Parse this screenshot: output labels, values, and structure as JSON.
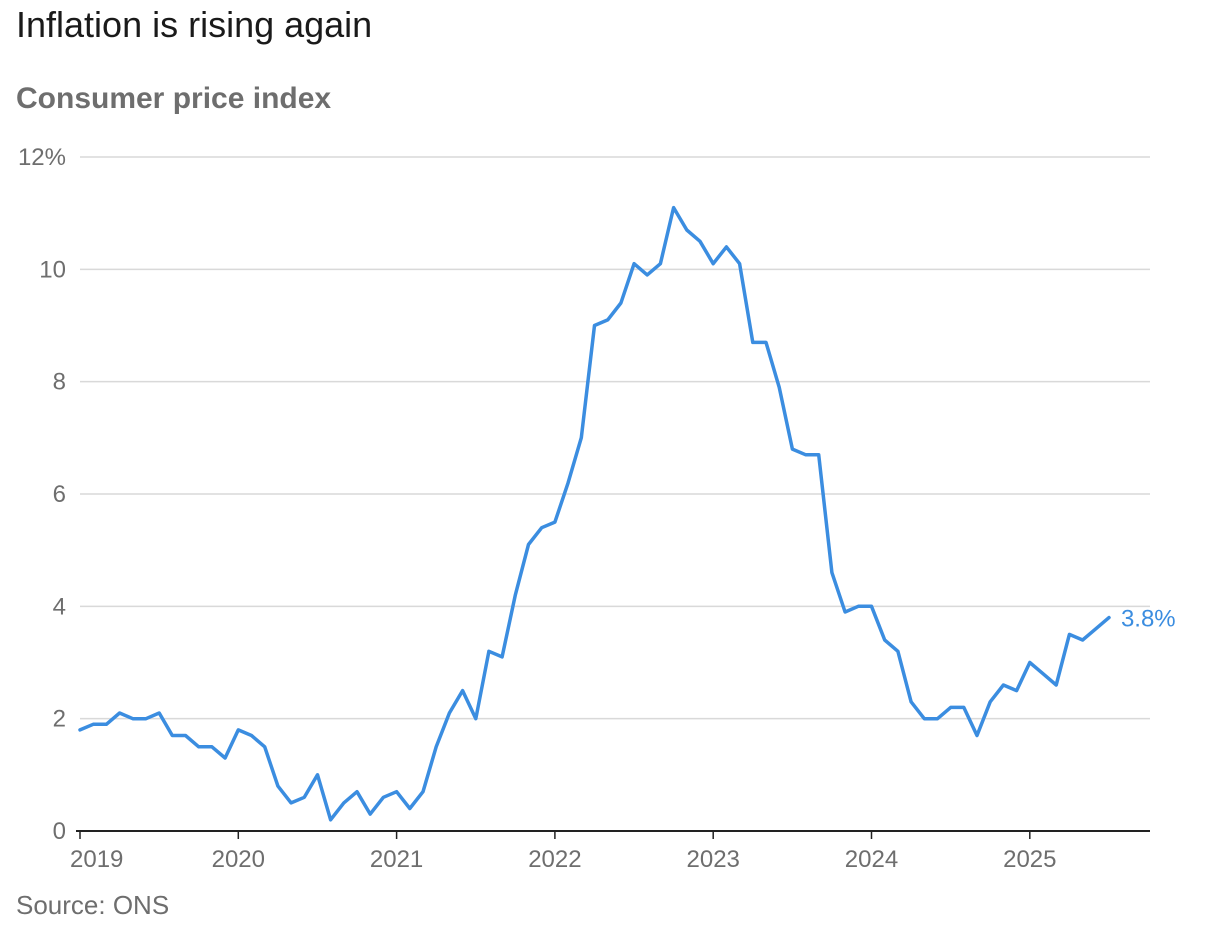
{
  "title": "Inflation is rising again",
  "subtitle": "Consumer price index",
  "source": "Source: ONS",
  "colors": {
    "line": "#3b8de0",
    "grid": "#d9d9d9",
    "axis": "#222222",
    "text": "#6e6e6e"
  },
  "chart_data": {
    "type": "line",
    "title": "Inflation is rising again",
    "subtitle": "Consumer price index",
    "ylim": [
      0,
      12
    ],
    "y_ticks": [
      0,
      2,
      4,
      6,
      8,
      10,
      12
    ],
    "y_tick_labels": [
      "0",
      "2",
      "4",
      "6",
      "8",
      "10",
      "12%"
    ],
    "x_ticks": [
      "2019",
      "2020",
      "2021",
      "2022",
      "2023",
      "2024",
      "2025"
    ],
    "grid": true,
    "end_label": "3.8%",
    "series": [
      {
        "start": "2019-01",
        "frequency": "monthly",
        "values": [
          1.8,
          1.9,
          1.9,
          2.1,
          2.0,
          2.0,
          2.1,
          1.7,
          1.7,
          1.5,
          1.5,
          1.3,
          1.8,
          1.7,
          1.5,
          0.8,
          0.5,
          0.6,
          1.0,
          0.2,
          0.5,
          0.7,
          0.3,
          0.6,
          0.7,
          0.4,
          0.7,
          1.5,
          2.1,
          2.5,
          2.0,
          3.2,
          3.1,
          4.2,
          5.1,
          5.4,
          5.5,
          6.2,
          7.0,
          9.0,
          9.1,
          9.4,
          10.1,
          9.9,
          10.1,
          11.1,
          10.7,
          10.5,
          10.1,
          10.4,
          10.1,
          8.7,
          8.7,
          7.9,
          6.8,
          6.7,
          6.7,
          4.6,
          3.9,
          4.0,
          4.0,
          3.4,
          3.2,
          2.3,
          2.0,
          2.0,
          2.2,
          2.2,
          1.7,
          2.3,
          2.6,
          2.5,
          3.0,
          2.8,
          2.6,
          3.5,
          3.4,
          3.6,
          3.8
        ]
      }
    ]
  }
}
